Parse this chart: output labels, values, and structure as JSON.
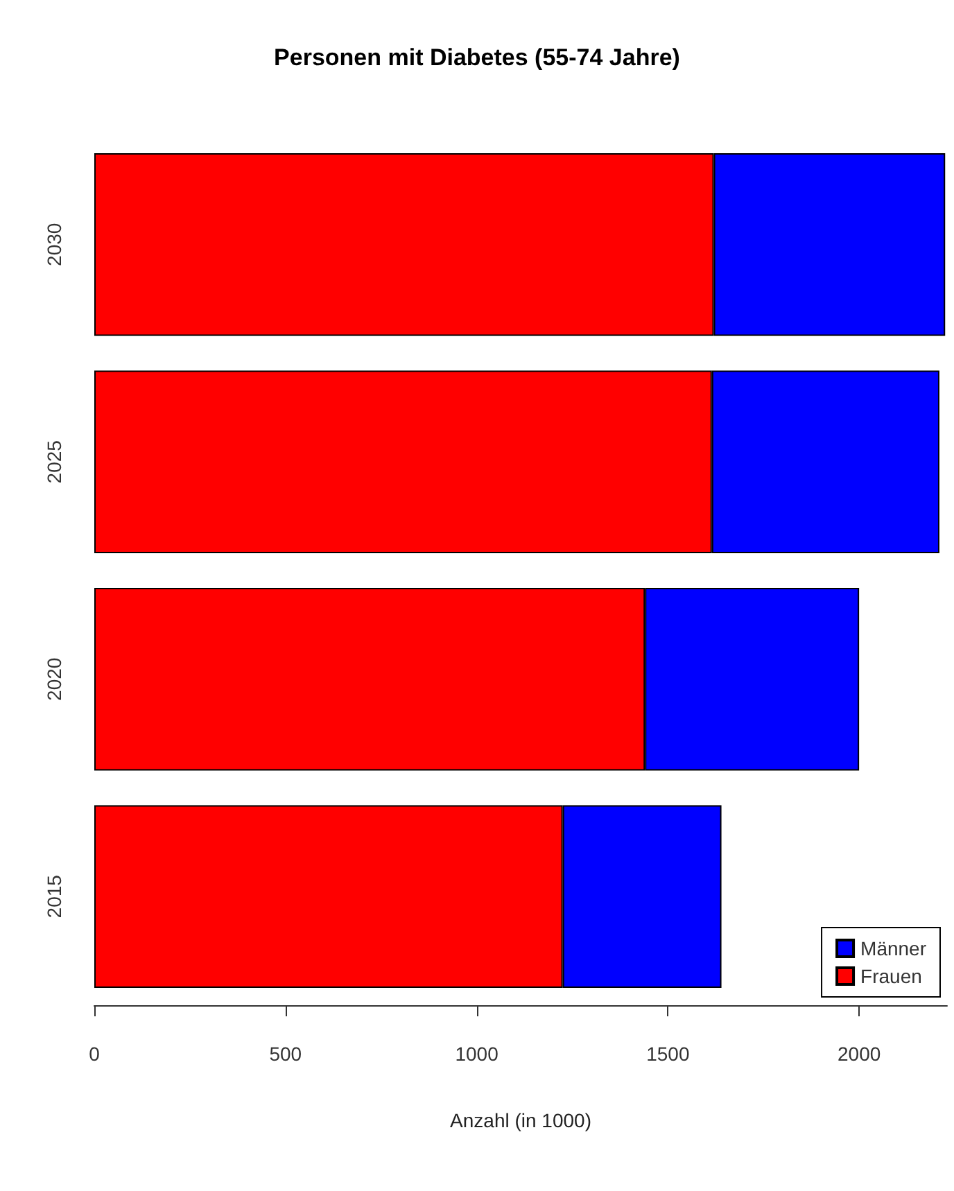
{
  "chart_data": {
    "type": "bar",
    "title": "Personen mit Diabetes (55-74 Jahre)",
    "xlabel": "Anzahl (in 1000)",
    "orientation": "horizontal",
    "stacked": true,
    "categories": [
      "2030",
      "2025",
      "2020",
      "2015"
    ],
    "series": [
      {
        "name": "Frauen",
        "color": "#ff0000",
        "values": [
          1620,
          1615,
          1440,
          1225
        ]
      },
      {
        "name": "Männer",
        "color": "#0000ff",
        "values": [
          605,
          595,
          560,
          415
        ]
      }
    ],
    "xlim": [
      0,
      2230
    ],
    "xticks": [
      0,
      500,
      1000,
      1500,
      2000
    ],
    "grid": false,
    "legend": "bottom right"
  }
}
